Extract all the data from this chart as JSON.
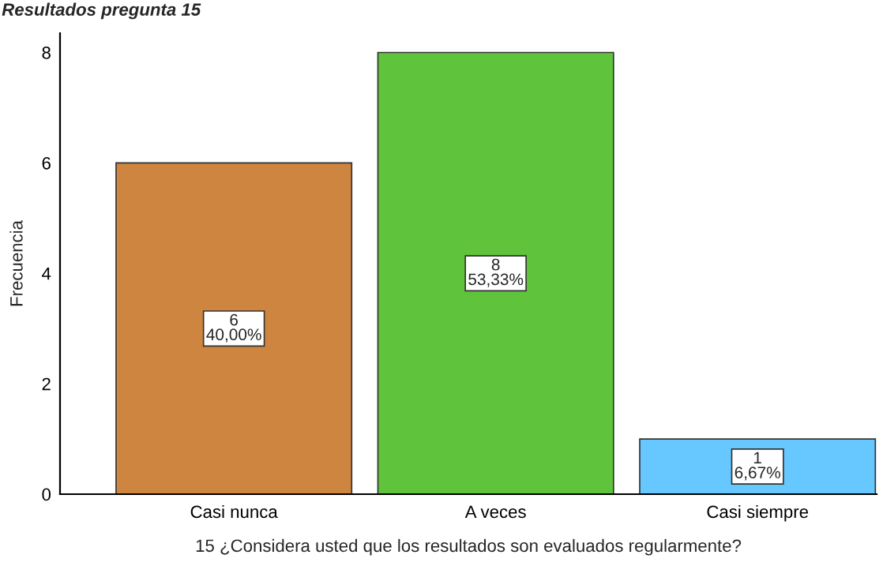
{
  "chart_data": {
    "type": "bar",
    "title": "Resultados pregunta 15",
    "xlabel": "15 ¿Considera usted que los resultados son evaluados regularmente?",
    "ylabel": "Frecuencia",
    "categories": [
      "Casi nunca",
      "A veces",
      "Casi siempre"
    ],
    "values": [
      6,
      8,
      1
    ],
    "colors": [
      "#cd853f",
      "#5fc43b",
      "#66c8ff"
    ],
    "value_labels": [
      "6\n40,00%",
      "8\n53,33%",
      "1\n6,67%"
    ],
    "ylim": [
      0,
      8.35
    ],
    "yticks": [
      0,
      2,
      4,
      6,
      8
    ]
  }
}
